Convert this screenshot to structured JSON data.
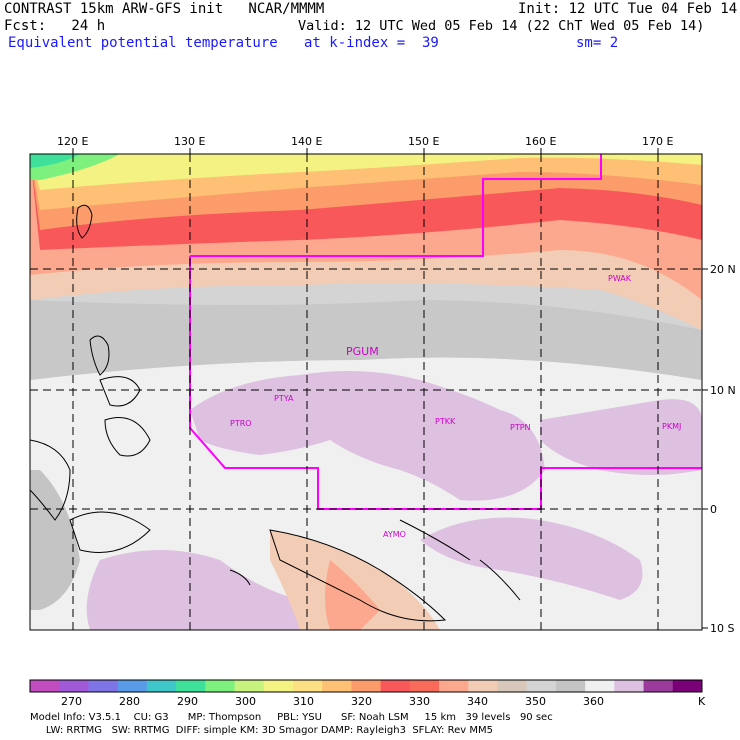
{
  "header": {
    "line1_left": "CONTRAST 15km ARW-GFS init   NCAR/MMMM",
    "line1_right": "Init: 12 UTC Tue 04 Feb 14",
    "line2_left": "Fcst:   24 h",
    "line2_right": "Valid: 12 UTC Wed 05 Feb 14 (22 ChT Wed 05 Feb 14)",
    "line3_left": "Equivalent potential temperature",
    "line3_mid": "at k-index =  39",
    "line3_right": "sm= 2"
  },
  "map": {
    "lon_labels": [
      "120 E",
      "130 E",
      "140 E",
      "150 E",
      "160 E",
      "170 E"
    ],
    "lat_labels": [
      "20 N",
      "10 N",
      "0",
      "10 S"
    ],
    "stations": [
      "PGUM",
      "PTYA",
      "PTRO",
      "PTKK",
      "PTPN",
      "PKMJ",
      "PWAK",
      "AYMO"
    ],
    "colors": {
      "boundary": "#ff00ff",
      "station": "#cc00cc",
      "grid": "#000000"
    }
  },
  "colorbar": {
    "labels": [
      "270",
      "280",
      "290",
      "300",
      "310",
      "320",
      "330",
      "340",
      "350",
      "360"
    ],
    "unit": "K",
    "colors": [
      "#c04cc0",
      "#a05ad8",
      "#7f74e6",
      "#5a9be8",
      "#3ec6c8",
      "#3ee09a",
      "#7ef07e",
      "#c8f27e",
      "#f5f284",
      "#fde084",
      "#fdc074",
      "#fb9c6a",
      "#f9585a",
      "#f96a5a",
      "#fba88e",
      "#f2ccb4",
      "#d8c8bc",
      "#d4d4d4",
      "#c4c4c4",
      "#f0f0f0",
      "#dec0e0",
      "#9a3a9a",
      "#7a0078"
    ]
  },
  "footer": {
    "line1": "Model Info: V3.5.1    CU: G3      MP: Thompson     PBL: YSU      SF: Noah LSM     15 km   39 levels   90 sec",
    "line2": "     LW: RRTMG   SW: RRTMG  DIFF: simple KM: 3D Smagor DAMP: Rayleigh3  SFLAY: Rev MM5"
  }
}
